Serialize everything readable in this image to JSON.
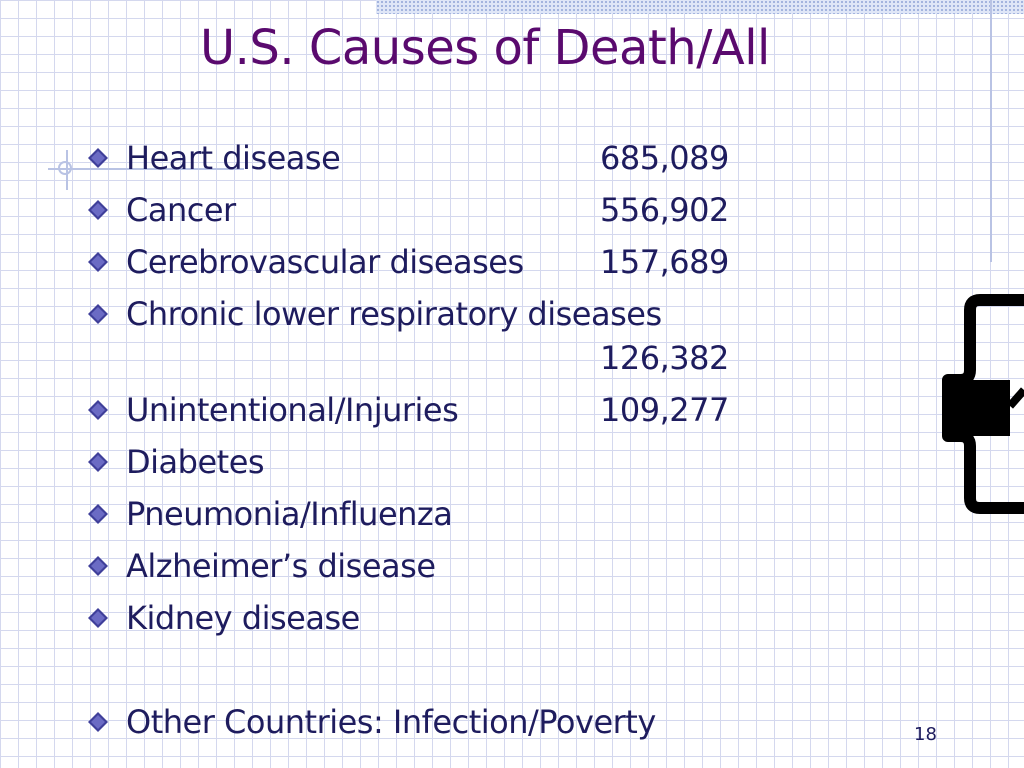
{
  "slide": {
    "title": "U.S. Causes of Death/All",
    "page_number": "18",
    "bullets": [
      {
        "label": "Heart disease",
        "value": "685,089"
      },
      {
        "label": "Cancer",
        "value": "556,902"
      },
      {
        "label": "Cerebrovascular diseases",
        "value": "157,689"
      },
      {
        "label": "Chronic lower respiratory diseases",
        "value": "126,382"
      },
      {
        "label": "Unintentional/Injuries",
        "value": "109,277"
      },
      {
        "label": "Diabetes"
      },
      {
        "label": "Pneumonia/Influenza"
      },
      {
        "label": "Alzheimer’s disease"
      },
      {
        "label": "Kidney disease"
      },
      {
        "label": "Other Countries: Infection/Poverty"
      }
    ]
  },
  "colors": {
    "title": "#5a0a6e",
    "text": "#1e1c5e",
    "grid": "#d4d8ee",
    "bullet_diamond": "#3f3f9a"
  },
  "icons": {
    "bullet": "diamond-bullet-icon",
    "graphic": "brace-clipart-icon"
  }
}
